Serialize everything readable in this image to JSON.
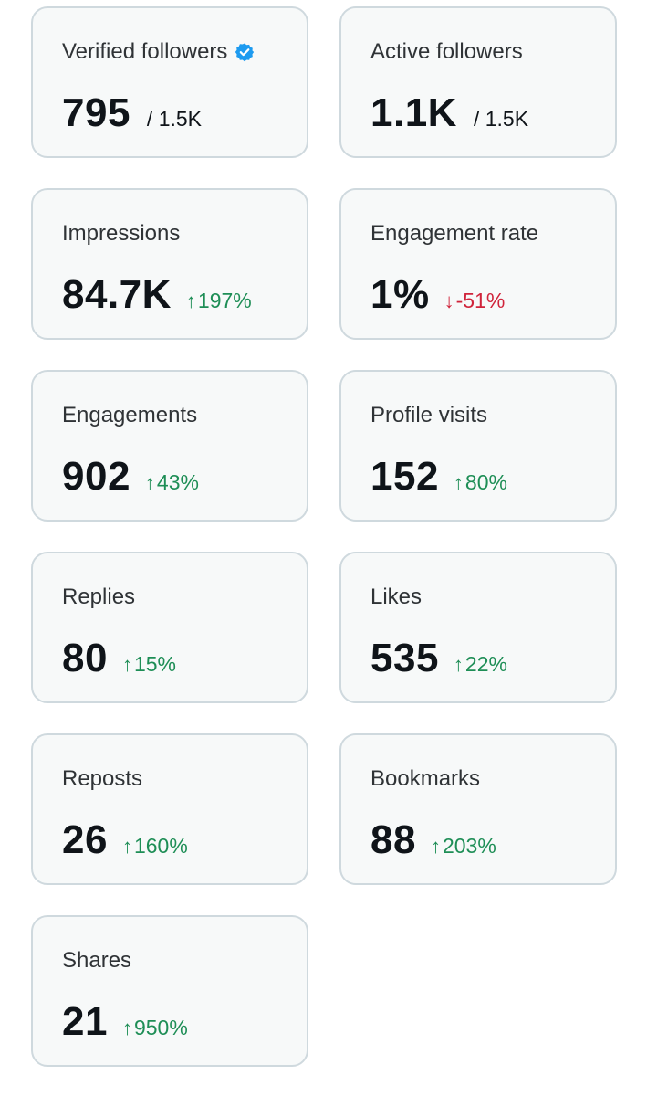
{
  "cards": [
    {
      "title": "Verified followers",
      "value": "795",
      "total": "/ 1.5K",
      "verified": true
    },
    {
      "title": "Active followers",
      "value": "1.1K",
      "total": "/ 1.5K"
    },
    {
      "title": "Impressions",
      "value": "84.7K",
      "change": "197%",
      "direction": "up",
      "arrow": "↑"
    },
    {
      "title": "Engagement rate",
      "value": "1%",
      "change": "-51%",
      "direction": "down",
      "arrow": "↓"
    },
    {
      "title": "Engagements",
      "value": "902",
      "change": "43%",
      "direction": "up",
      "arrow": "↑"
    },
    {
      "title": "Profile visits",
      "value": "152",
      "change": "80%",
      "direction": "up",
      "arrow": "↑"
    },
    {
      "title": "Replies",
      "value": "80",
      "change": "15%",
      "direction": "up",
      "arrow": "↑"
    },
    {
      "title": "Likes",
      "value": "535",
      "change": "22%",
      "direction": "up",
      "arrow": "↑"
    },
    {
      "title": "Reposts",
      "value": "26",
      "change": "160%",
      "direction": "up",
      "arrow": "↑"
    },
    {
      "title": "Bookmarks",
      "value": "88",
      "change": "203%",
      "direction": "up",
      "arrow": "↑"
    },
    {
      "title": "Shares",
      "value": "21",
      "change": "950%",
      "direction": "up",
      "arrow": "↑"
    }
  ],
  "icons": {
    "verified": "verified-badge-icon"
  },
  "colors": {
    "up": "#1e8e56",
    "down": "#d0243b",
    "verified": "#1d9bf0",
    "card_bg": "#f7f9f9",
    "card_border": "#cfd9de"
  }
}
